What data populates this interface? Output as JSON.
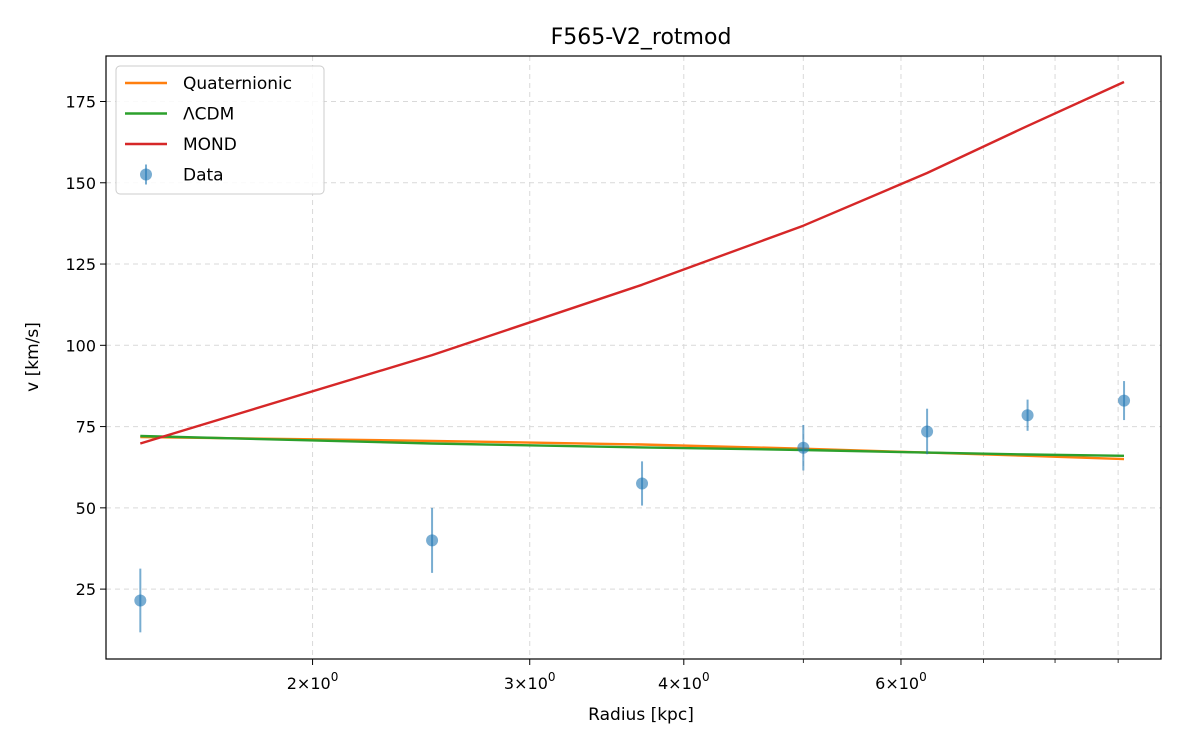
{
  "chart_data": {
    "type": "line",
    "title": "F565-V2_rotmod",
    "xlabel": "Radius [kpc]",
    "ylabel": "v [km/s]",
    "x_scale": "log",
    "xlim": [
      1.36,
      9.75
    ],
    "ylim": [
      3.5,
      189
    ],
    "grid": true,
    "legend_position": "top-left",
    "x_ticks": [
      {
        "value": 2,
        "mantissa": "2",
        "base": "10",
        "exponent": "0"
      },
      {
        "value": 3,
        "mantissa": "3",
        "base": "10",
        "exponent": "0"
      },
      {
        "value": 4,
        "mantissa": "4",
        "base": "10",
        "exponent": "0"
      },
      {
        "value": 6,
        "mantissa": "6",
        "base": "10",
        "exponent": "0"
      }
    ],
    "x_minor_ticks": [
      5,
      7,
      8,
      9
    ],
    "y_ticks": [
      {
        "value": 25,
        "label": "25"
      },
      {
        "value": 50,
        "label": "50"
      },
      {
        "value": 75,
        "label": "75"
      },
      {
        "value": 100,
        "label": "100"
      },
      {
        "value": 125,
        "label": "125"
      },
      {
        "value": 150,
        "label": "150"
      },
      {
        "value": 175,
        "label": "175"
      }
    ],
    "x": [
      1.45,
      2.5,
      3.7,
      5.0,
      6.3,
      7.6,
      9.1
    ],
    "series": [
      {
        "name": "Quaternionic",
        "kind": "line",
        "color": "#ff7f0e",
        "values": [
          71.8,
          70.6,
          69.5,
          68.2,
          67.0,
          66.0,
          65.0
        ]
      },
      {
        "name": "ΛCDM",
        "kind": "line",
        "color": "#2ca02c",
        "values": [
          72.1,
          69.8,
          68.6,
          67.8,
          67.0,
          66.4,
          66.0
        ]
      },
      {
        "name": "MOND",
        "kind": "line",
        "color": "#d62728",
        "values": [
          69.8,
          97.0,
          118.6,
          136.8,
          153.0,
          167.5,
          181.0
        ]
      },
      {
        "name": "Data",
        "kind": "scatter",
        "color": "#1f77b4",
        "values": [
          21.5,
          40.0,
          57.5,
          68.5,
          73.5,
          78.5,
          83.0
        ],
        "errors": [
          9.8,
          10.0,
          6.8,
          7.0,
          7.0,
          4.8,
          6.0
        ]
      }
    ]
  }
}
